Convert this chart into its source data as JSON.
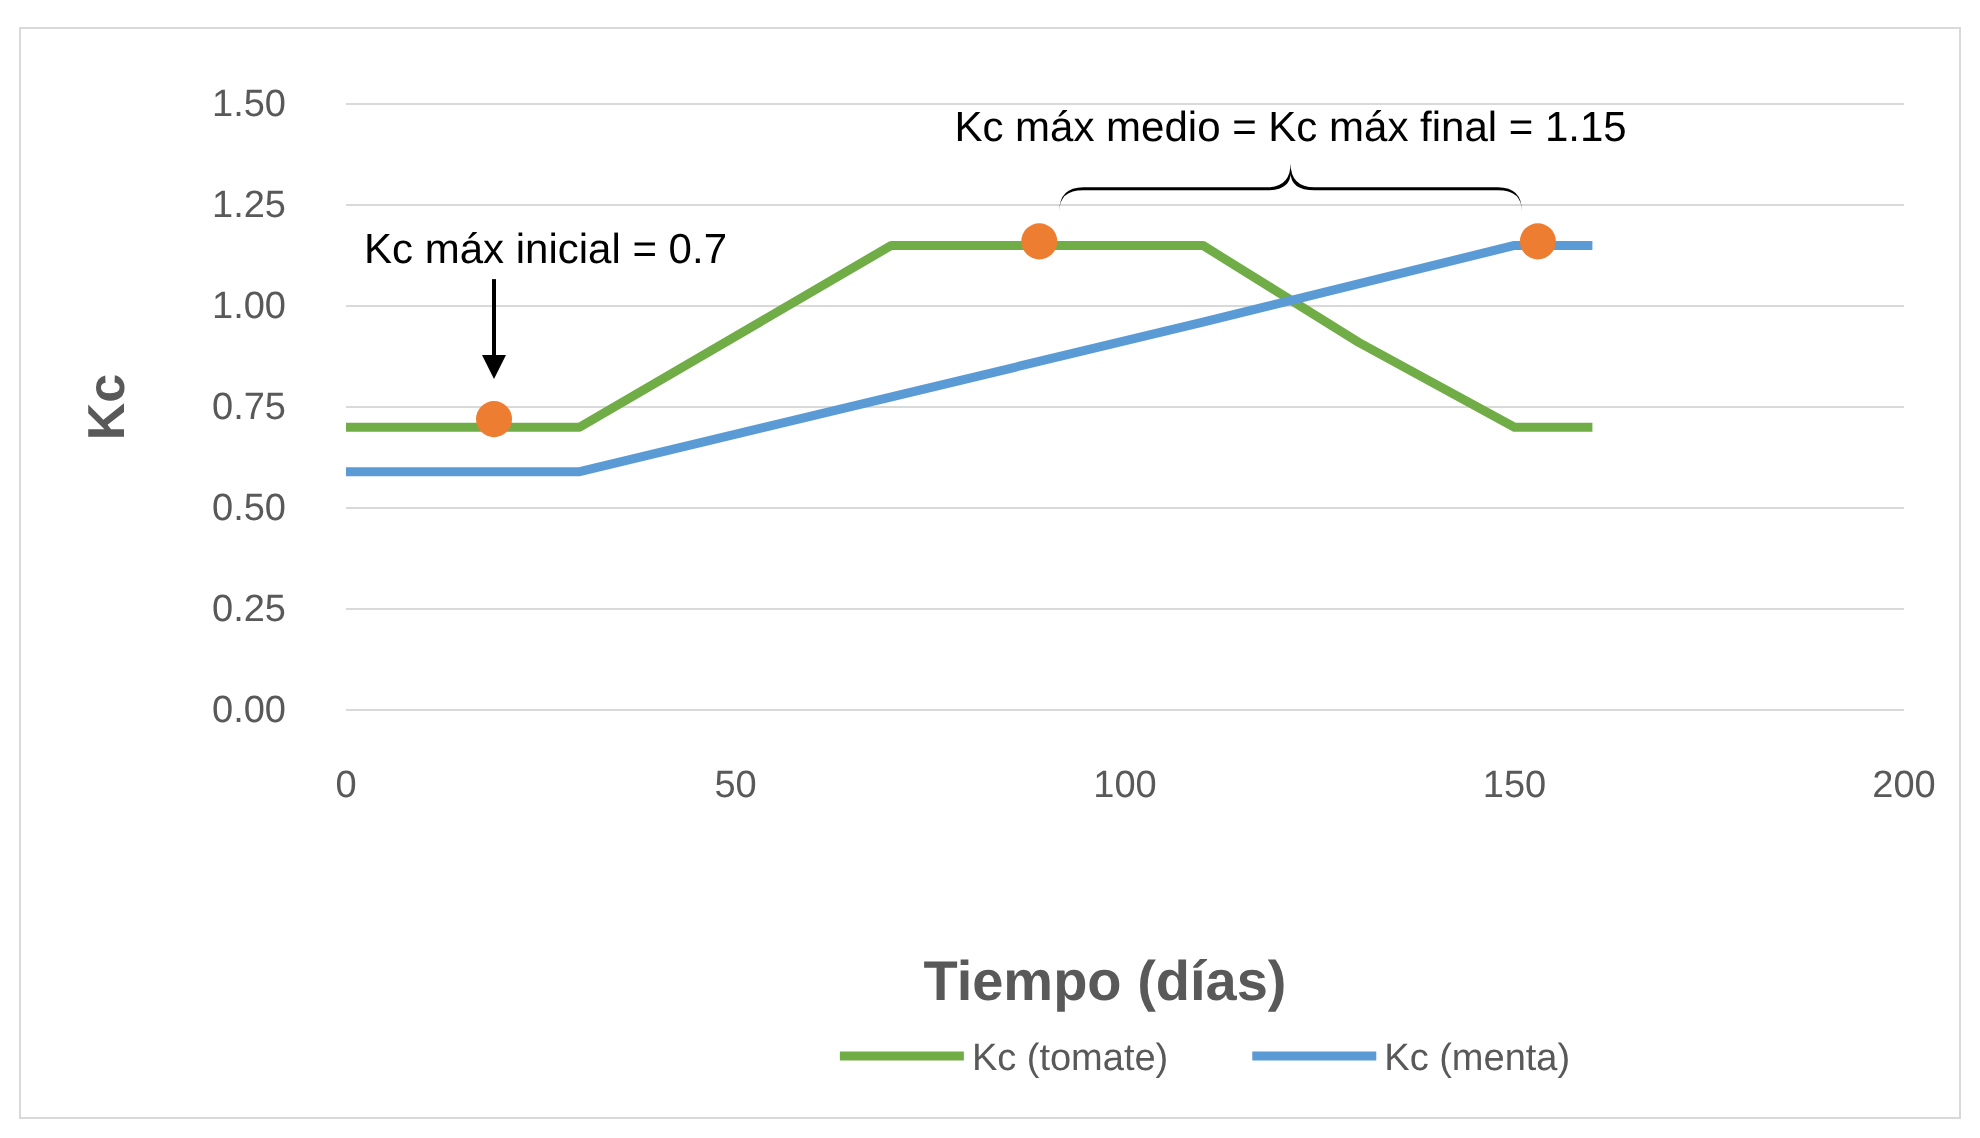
{
  "chart_data": {
    "type": "line",
    "xlabel": "Tiempo (días)",
    "ylabel": "Kc",
    "xlim": [
      0,
      200
    ],
    "xticks": [
      0,
      50,
      100,
      150,
      200
    ],
    "ylim": [
      0,
      1.5
    ],
    "yticks": [
      {
        "value": 0,
        "label": "0.00"
      },
      {
        "value": 0.25,
        "label": "0.25"
      },
      {
        "value": 0.5,
        "label": "0.50"
      },
      {
        "value": 0.75,
        "label": "0.75"
      },
      {
        "value": 1,
        "label": "1.00"
      },
      {
        "value": 1.25,
        "label": "1.25"
      },
      {
        "value": 1.5,
        "label": "1.50"
      }
    ],
    "grid": "y",
    "legend": "bottom",
    "marker": "none",
    "line_style": "solid",
    "series": [
      {
        "name": "Kc (tomate)",
        "color": "#70ad47",
        "x": [
          0,
          30,
          70,
          110,
          130,
          150,
          160
        ],
        "values": [
          0.7,
          0.7,
          1.15,
          1.15,
          0.91,
          0.7,
          0.7
        ]
      },
      {
        "name": "Kc (menta)",
        "color": "#5b9bd5",
        "x": [
          0,
          30,
          110,
          150,
          160
        ],
        "values": [
          0.59,
          0.59,
          0.96,
          1.15,
          1.15
        ]
      },
      {
        "type": "scatter",
        "color": "#ed7d31",
        "marker": "circle",
        "x": [
          19,
          89,
          153
        ],
        "values": [
          0.72,
          1.16,
          1.16
        ]
      }
    ],
    "annotations": [
      "Kc máx inicial = 0.7",
      "Kc máx medio = Kc máx final = 1.15"
    ]
  }
}
